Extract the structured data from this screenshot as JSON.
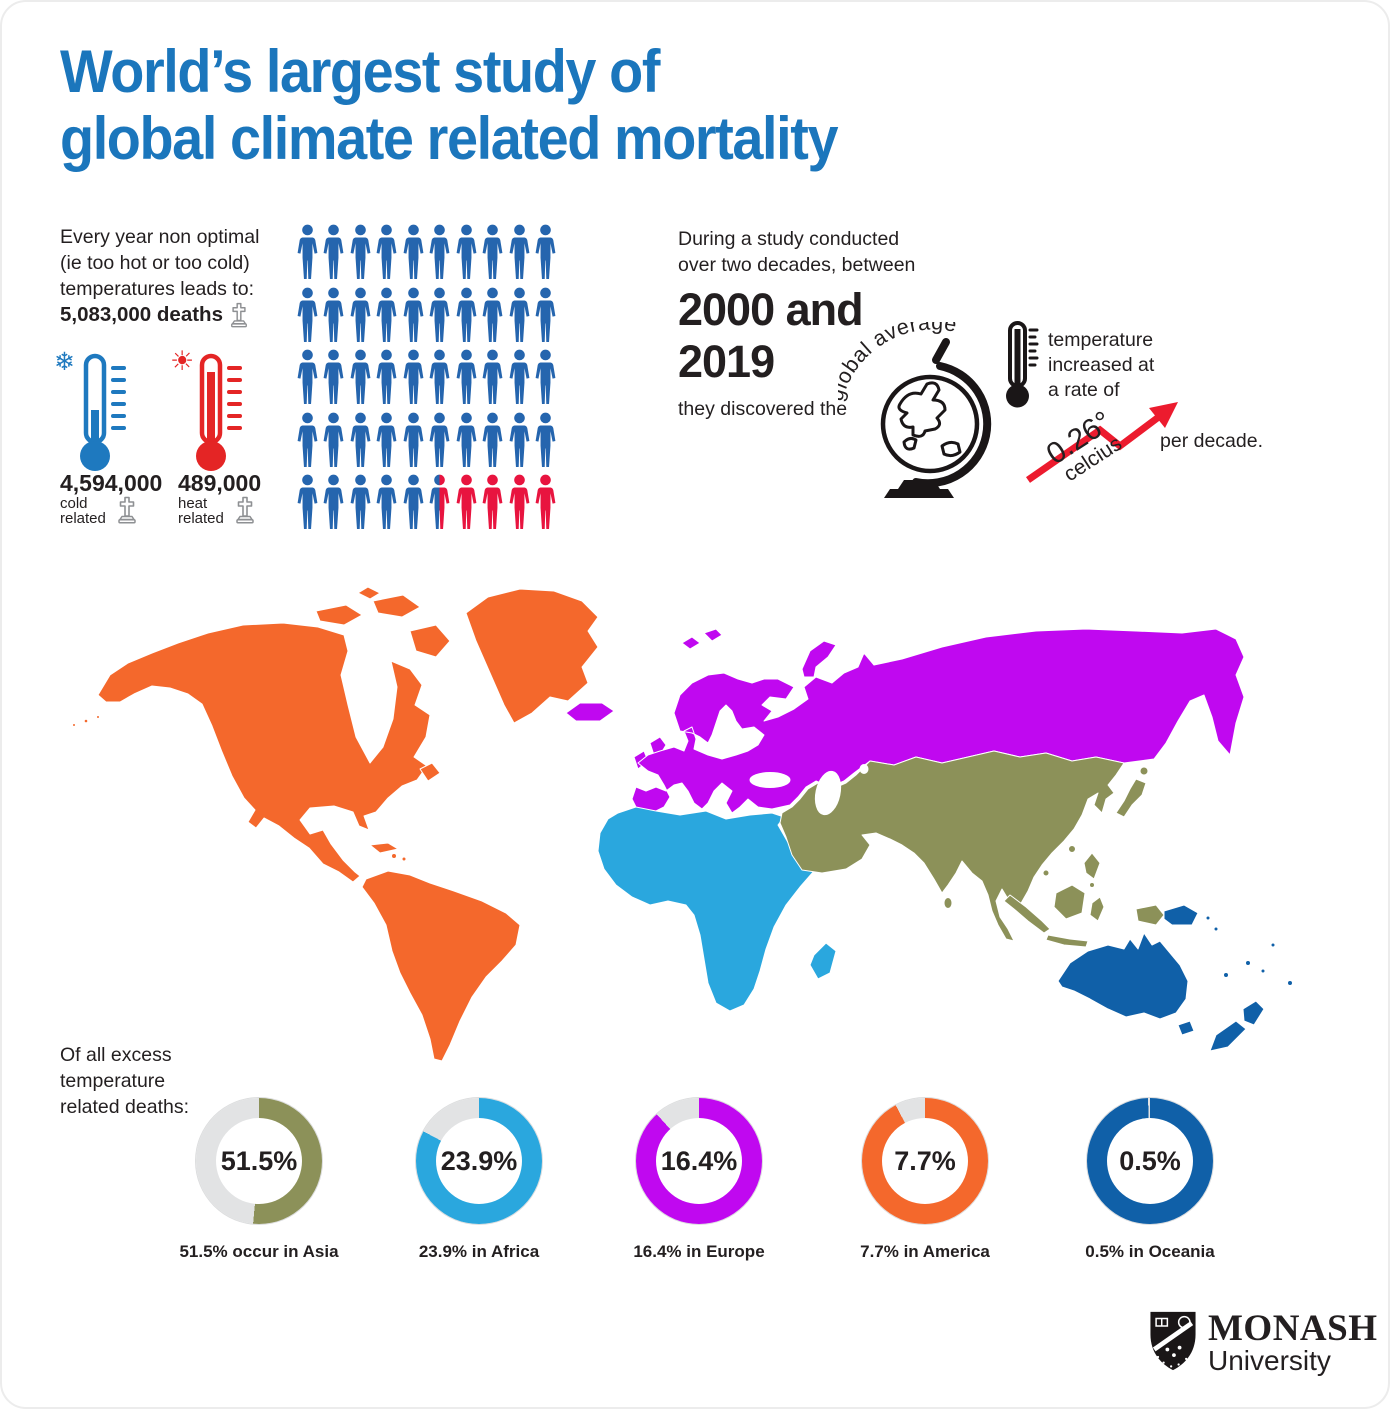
{
  "colors": {
    "title_blue": "#1B76BC",
    "text_dark": "#231F20",
    "person_blue": "#2565AE",
    "person_red": "#E8143F",
    "cold_blue": "#1E79BF",
    "heat_red": "#E42525",
    "icon_black": "#1A1617",
    "arrow_red": "#EC1B2E",
    "donut_gray": "#E2E3E4",
    "tombstone_gray": "#8E9093",
    "map_americas": "#F4682C",
    "map_europe_russia": "#C008F0",
    "map_africa": "#2AA7DE",
    "map_asia": "#8C9159",
    "map_oceania": "#1060A8"
  },
  "title": {
    "line1": "World’s largest study of",
    "line2": "global climate related mortality"
  },
  "mortality_panel": {
    "intro_line1": "Every year non optimal",
    "intro_line2": "(ie too hot or too cold)",
    "intro_line3": "temperatures leads to:",
    "total_deaths": "5,083,000 deaths",
    "cold": {
      "value": "4,594,000",
      "label_line1": "cold",
      "label_line2": "related"
    },
    "heat": {
      "value": "489,000",
      "label_line1": "heat",
      "label_line2": "related"
    }
  },
  "pictogram": {
    "rows": 5,
    "cols": 10,
    "total_icons": 50,
    "blue_icons": 45,
    "split_icons": 1,
    "red_icons": 4
  },
  "study_panel": {
    "intro_line1": "During a study conducted",
    "intro_line2": "over two decades, between",
    "years_line1": "2000 and",
    "years_line2": "2019",
    "discovered": "they discovered the",
    "globe_label": "global average",
    "rate_line1": "temperature",
    "rate_line2": "increased at",
    "rate_line3": "a rate of",
    "rate_value": "0.26°",
    "rate_unit": "celcius",
    "per_decade": "per decade."
  },
  "donut_section": {
    "heading_line1": "Of all excess",
    "heading_line2": "temperature",
    "heading_line3": "related deaths:"
  },
  "donuts": [
    {
      "region": "Asia",
      "value_label": "51.5%",
      "caption": "51.5% occur in Asia",
      "color": "#8C9159",
      "ring_percent": 51.5
    },
    {
      "region": "Africa",
      "value_label": "23.9%",
      "caption": "23.9% in Africa",
      "color": "#2AA7DE",
      "ring_percent": 82.8
    },
    {
      "region": "Europe",
      "value_label": "16.4%",
      "caption": "16.4% in Europe",
      "color": "#C008F0",
      "ring_percent": 88.3
    },
    {
      "region": "America",
      "value_label": "7.7%",
      "caption": "7.7% in America",
      "color": "#F4682C",
      "ring_percent": 92.3
    },
    {
      "region": "Oceania",
      "value_label": "0.5%",
      "caption": "0.5% in Oceania",
      "color": "#1060A8",
      "ring_percent": 99.5
    }
  ],
  "logo": {
    "name_line1": "MONASH",
    "name_line2": "University"
  },
  "chart_data": [
    {
      "type": "pie",
      "title": "Of all excess temperature related deaths",
      "labels": [
        "Asia",
        "Africa",
        "Europe",
        "America",
        "Oceania"
      ],
      "values": [
        51.5,
        23.9,
        16.4,
        7.7,
        0.5
      ],
      "unit": "%",
      "colors": [
        "#8C9159",
        "#2AA7DE",
        "#C008F0",
        "#F4682C",
        "#1060A8"
      ],
      "render": "five donut charts with grey remainder, value centered in hole, caption below"
    },
    {
      "type": "pictograph",
      "title": "Every year non optimal temperatures leads to",
      "total": {
        "label": "5,083,000 deaths"
      },
      "series": [
        {
          "name": "cold related",
          "value": 4594000
        },
        {
          "name": "heat related",
          "value": 489000
        }
      ],
      "icons": {
        "total": 50,
        "cold_colored": 45.5,
        "heat_colored": 4.5
      }
    },
    {
      "type": "stat",
      "title": "Global average temperature trend 2000-2019",
      "value": 0.26,
      "unit": "° celcius per decade"
    }
  ]
}
